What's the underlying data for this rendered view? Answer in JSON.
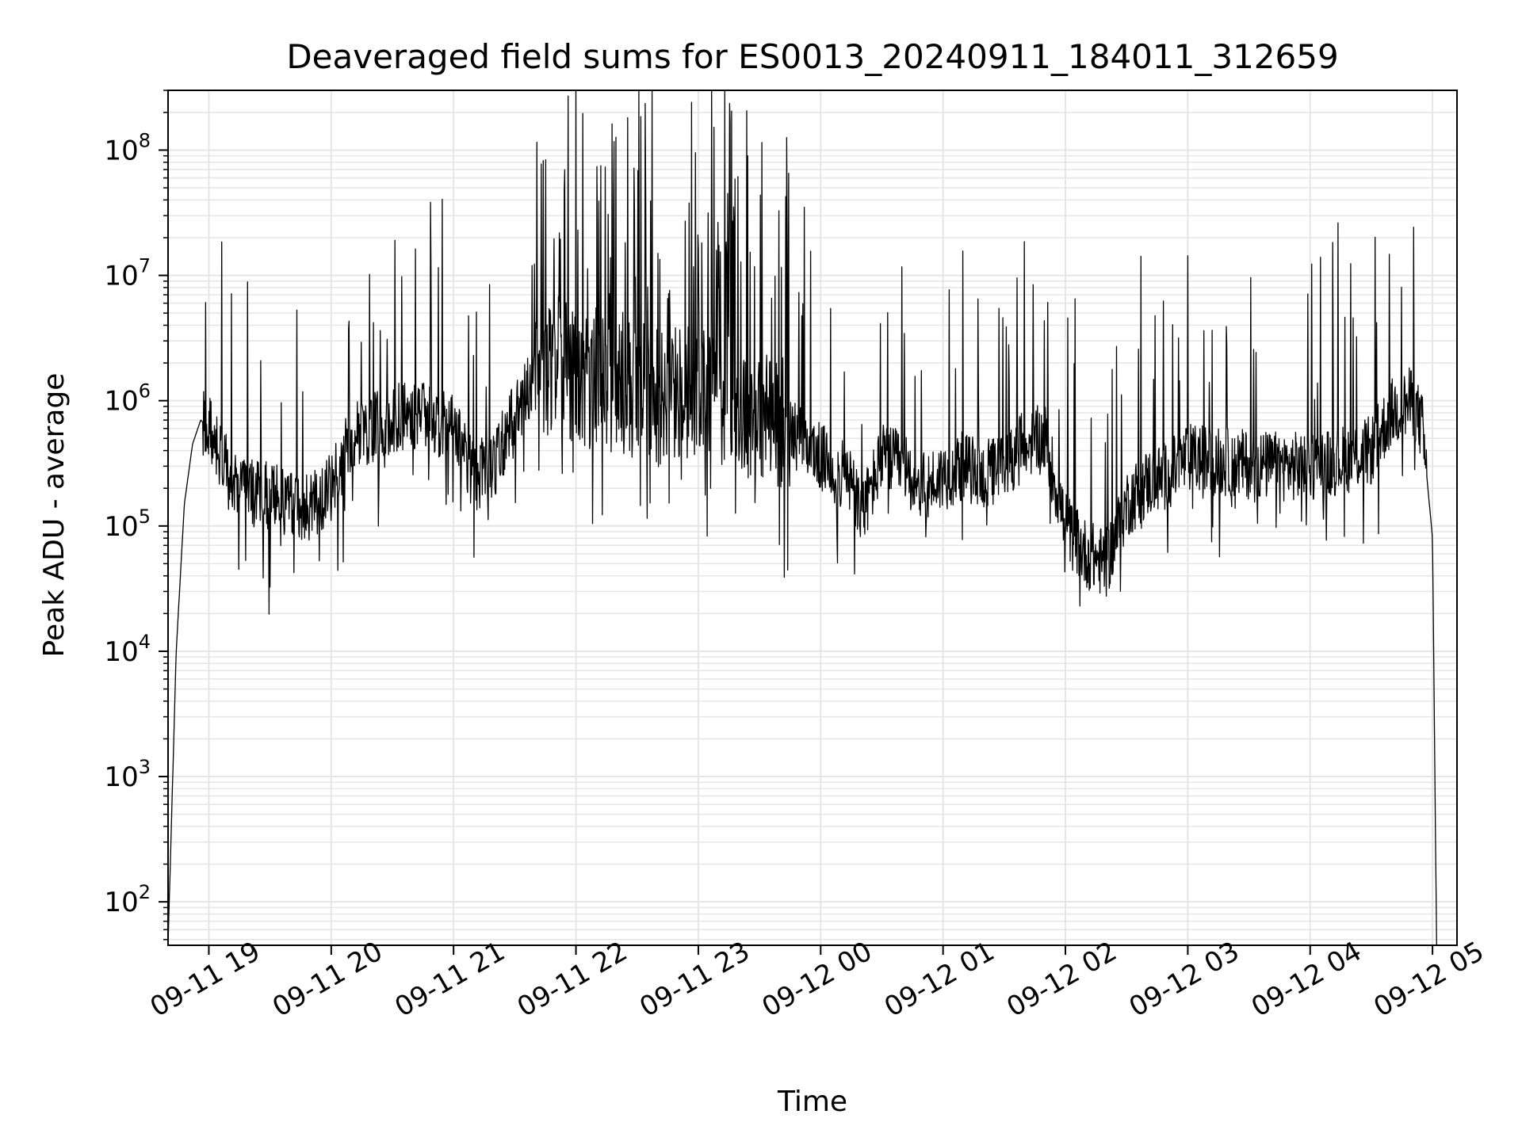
{
  "chart_data": {
    "type": "line",
    "title": "Deaveraged field sums for ES0013_20240911_184011_312659",
    "xlabel": "Time",
    "ylabel": "Peak ADU - average",
    "x_axis": {
      "kind": "datetime",
      "range": [
        "2024-09-11 18:40",
        "2024-09-12 05:12"
      ],
      "ticks": [
        {
          "t": "2024-09-11 19:00",
          "label": "09-11 19"
        },
        {
          "t": "2024-09-11 20:00",
          "label": "09-11 20"
        },
        {
          "t": "2024-09-11 21:00",
          "label": "09-11 21"
        },
        {
          "t": "2024-09-11 22:00",
          "label": "09-11 22"
        },
        {
          "t": "2024-09-11 23:00",
          "label": "09-11 23"
        },
        {
          "t": "2024-09-12 00:00",
          "label": "09-12 00"
        },
        {
          "t": "2024-09-12 01:00",
          "label": "09-12 01"
        },
        {
          "t": "2024-09-12 02:00",
          "label": "09-12 02"
        },
        {
          "t": "2024-09-12 03:00",
          "label": "09-12 03"
        },
        {
          "t": "2024-09-12 04:00",
          "label": "09-12 04"
        },
        {
          "t": "2024-09-12 05:00",
          "label": "09-12 05"
        }
      ]
    },
    "y_axis": {
      "scale": "log",
      "range": [
        45,
        300000000
      ],
      "ticks": [
        {
          "value": 100,
          "base": "10",
          "exp": "2"
        },
        {
          "value": 1000,
          "base": "10",
          "exp": "3"
        },
        {
          "value": 10000,
          "base": "10",
          "exp": "4"
        },
        {
          "value": 100000,
          "base": "10",
          "exp": "5"
        },
        {
          "value": 1000000,
          "base": "10",
          "exp": "6"
        },
        {
          "value": 10000000,
          "base": "10",
          "exp": "7"
        },
        {
          "value": 100000000,
          "base": "10",
          "exp": "8"
        }
      ]
    },
    "grid": true,
    "line_color": "#000000",
    "grid_color": "#e5e5e5",
    "series": [
      {
        "values_note": "baseline envelope of the noisy trace",
        "x": [
          "2024-09-11 18:40",
          "2024-09-11 18:44",
          "2024-09-11 18:48",
          "2024-09-11 18:52",
          "2024-09-11 18:56",
          "2024-09-11 19:00",
          "2024-09-11 19:10",
          "2024-09-11 19:20",
          "2024-09-11 19:30",
          "2024-09-11 19:40",
          "2024-09-11 19:50",
          "2024-09-11 20:00",
          "2024-09-11 20:10",
          "2024-09-11 20:20",
          "2024-09-11 20:40",
          "2024-09-11 21:00",
          "2024-09-11 21:10",
          "2024-09-11 21:20",
          "2024-09-11 21:30",
          "2024-09-11 21:40",
          "2024-09-11 21:50",
          "2024-09-11 22:00",
          "2024-09-11 22:20",
          "2024-09-11 22:40",
          "2024-09-11 23:00",
          "2024-09-11 23:20",
          "2024-09-11 23:40",
          "2024-09-12 00:00",
          "2024-09-12 00:15",
          "2024-09-12 00:20",
          "2024-09-12 00:30",
          "2024-09-12 00:40",
          "2024-09-12 00:50",
          "2024-09-12 01:00",
          "2024-09-12 01:10",
          "2024-09-12 01:20",
          "2024-09-12 01:30",
          "2024-09-12 01:40",
          "2024-09-12 01:50",
          "2024-09-12 02:00",
          "2024-09-12 02:10",
          "2024-09-12 02:20",
          "2024-09-12 02:30",
          "2024-09-12 02:40",
          "2024-09-12 02:50",
          "2024-09-12 03:00",
          "2024-09-12 03:20",
          "2024-09-12 03:40",
          "2024-09-12 04:00",
          "2024-09-12 04:20",
          "2024-09-12 04:30",
          "2024-09-12 04:40",
          "2024-09-12 04:50",
          "2024-09-12 04:55",
          "2024-09-12 05:00",
          "2024-09-12 05:02"
        ],
        "y": [
          45,
          10000,
          150000,
          450000,
          700000,
          600000,
          250000,
          180000,
          170000,
          150000,
          140000,
          200000,
          500000,
          600000,
          800000,
          600000,
          250000,
          300000,
          800000,
          1500000,
          2000000,
          1500000,
          1300000,
          1100000,
          1200000,
          900000,
          700000,
          350000,
          220000,
          120000,
          350000,
          300000,
          200000,
          250000,
          300000,
          250000,
          300000,
          450000,
          500000,
          100000,
          60000,
          50000,
          150000,
          220000,
          250000,
          350000,
          320000,
          300000,
          300000,
          350000,
          400000,
          800000,
          1000000,
          600000,
          80000,
          45
        ]
      }
    ]
  }
}
